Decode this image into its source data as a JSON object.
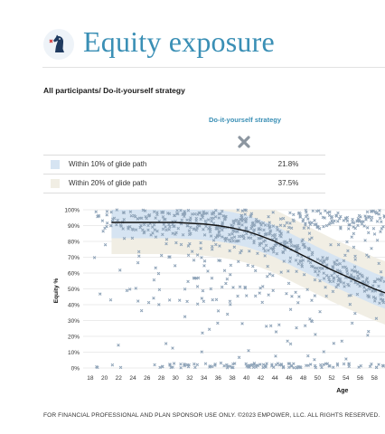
{
  "header": {
    "title": "Equity exposure"
  },
  "subtitle": "All participants/ Do-it-yourself strategy",
  "legend_table": {
    "column_header": "Do-it-yourself strategy",
    "column_icon": "x-marker-icon",
    "rows": [
      {
        "label": "Within 10% of glide path",
        "value": "21.8%",
        "color": "#d6e4f2"
      },
      {
        "label": "Within 20% of glide path",
        "value": "37.5%",
        "color": "#f1eee4"
      }
    ]
  },
  "footer": "FOR FINANCIAL PROFESSIONAL AND PLAN SPONSOR USE ONLY. ©2023 EMPOWER, LLC. ALL RIGHTS RESERVED.",
  "chart_data": {
    "type": "scatter",
    "ylabel": "Equity %",
    "xlabel": "Age",
    "xlim": [
      17,
      59.5
    ],
    "ylim": [
      0,
      100
    ],
    "x_ticks": [
      18,
      20,
      22,
      24,
      26,
      28,
      30,
      32,
      34,
      36,
      38,
      40,
      42,
      44,
      46,
      48,
      50,
      52,
      54,
      56,
      58
    ],
    "y_ticks": [
      "0%",
      "10%",
      "20%",
      "30%",
      "40%",
      "50%",
      "60%",
      "70%",
      "80%",
      "90%",
      "100%"
    ],
    "grid": true,
    "colors": {
      "band_10": "#d6e4f2",
      "band_20": "#f1eee4",
      "glide_line": "#111111",
      "markers": "#8ea3b8"
    },
    "glide_path": {
      "x": [
        21,
        24,
        26,
        28,
        30,
        32,
        34,
        36,
        38,
        40,
        42,
        44,
        46,
        48,
        50,
        52,
        54,
        56,
        58,
        59.5
      ],
      "y": [
        92,
        92,
        92,
        92,
        92,
        91.5,
        91,
        90,
        88.5,
        86.5,
        83.5,
        80,
        75.5,
        71,
        66.5,
        62,
        58,
        54,
        50,
        47.5
      ]
    },
    "band_10_width": 10,
    "band_20_width": 20,
    "marker_shape": "x"
  }
}
